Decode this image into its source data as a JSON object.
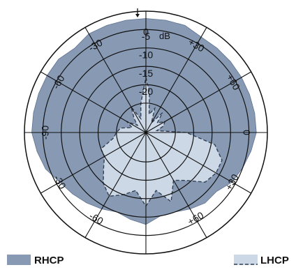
{
  "chart_data": {
    "type": "polar",
    "unit": "dB",
    "radial": {
      "ticks": [
        -25,
        -20,
        -15,
        -10,
        -5
      ],
      "labels": [
        "-5",
        "-10",
        "-15",
        "-20"
      ],
      "rmax": 0,
      "rmin": -33,
      "unit_label": "dB"
    },
    "angle_ticks": [
      {
        "angle": -90,
        "text": "-90"
      },
      {
        "angle": -60,
        "text": "-60"
      },
      {
        "angle": -30,
        "text": "-30"
      },
      {
        "angle": 0,
        "text": "0"
      },
      {
        "angle": 30,
        "text": "+30"
      },
      {
        "angle": 60,
        "text": "+60"
      },
      {
        "angle": 90,
        "text": "0"
      },
      {
        "angle": 120,
        "text": "+30"
      },
      {
        "angle": 150,
        "text": "+60"
      },
      {
        "angle": 210,
        "text": "-60"
      },
      {
        "angle": 240,
        "text": "-30"
      }
    ],
    "colors": {
      "rhcp": "#8799b3",
      "lhcp": "#cdd8e6",
      "grid": "#111111",
      "lhcp_outline": "#334155"
    },
    "series": [
      {
        "name": "RHCP",
        "style": "filled",
        "points": [
          [
            0,
            -2
          ],
          [
            10,
            -2
          ],
          [
            20,
            -2
          ],
          [
            30,
            -3
          ],
          [
            40,
            -3
          ],
          [
            50,
            -3
          ],
          [
            60,
            -3
          ],
          [
            70,
            -3
          ],
          [
            80,
            -3
          ],
          [
            90,
            -3
          ],
          [
            100,
            -4
          ],
          [
            110,
            -5
          ],
          [
            120,
            -6
          ],
          [
            130,
            -8
          ],
          [
            140,
            -8
          ],
          [
            150,
            -9
          ],
          [
            160,
            -10
          ],
          [
            170,
            -10
          ],
          [
            180,
            -8
          ],
          [
            190,
            -9
          ],
          [
            200,
            -10
          ],
          [
            210,
            -9
          ],
          [
            220,
            -8
          ],
          [
            230,
            -7
          ],
          [
            240,
            -6
          ],
          [
            250,
            -4
          ],
          [
            260,
            -3
          ],
          [
            270,
            -2
          ],
          [
            280,
            -2
          ],
          [
            290,
            -2
          ],
          [
            300,
            -2
          ],
          [
            310,
            -2
          ],
          [
            320,
            -3
          ],
          [
            330,
            -2
          ],
          [
            340,
            -2
          ],
          [
            350,
            -2
          ]
        ]
      },
      {
        "name": "LHCP",
        "style": "dashed",
        "points": [
          [
            0,
            -18
          ],
          [
            5,
            -22
          ],
          [
            10,
            -28
          ],
          [
            20,
            -26
          ],
          [
            30,
            -30
          ],
          [
            40,
            -26
          ],
          [
            50,
            -29
          ],
          [
            60,
            -27
          ],
          [
            70,
            -28
          ],
          [
            80,
            -30
          ],
          [
            90,
            -22
          ],
          [
            100,
            -14
          ],
          [
            110,
            -11
          ],
          [
            120,
            -11
          ],
          [
            130,
            -12
          ],
          [
            140,
            -16
          ],
          [
            150,
            -18
          ],
          [
            160,
            -13
          ],
          [
            170,
            -17
          ],
          [
            180,
            -13
          ],
          [
            190,
            -17
          ],
          [
            200,
            -15
          ],
          [
            210,
            -13
          ],
          [
            220,
            -15
          ],
          [
            230,
            -18
          ],
          [
            240,
            -20
          ],
          [
            250,
            -20
          ],
          [
            260,
            -24
          ],
          [
            270,
            -25
          ],
          [
            280,
            -26
          ],
          [
            290,
            -29
          ],
          [
            300,
            -27
          ],
          [
            310,
            -30
          ],
          [
            320,
            -28
          ],
          [
            330,
            -25
          ],
          [
            340,
            -29
          ],
          [
            350,
            -25
          ]
        ]
      }
    ],
    "legend": [
      {
        "name": "RHCP",
        "position": "bottom-left"
      },
      {
        "name": "LHCP",
        "position": "bottom-right"
      }
    ]
  }
}
